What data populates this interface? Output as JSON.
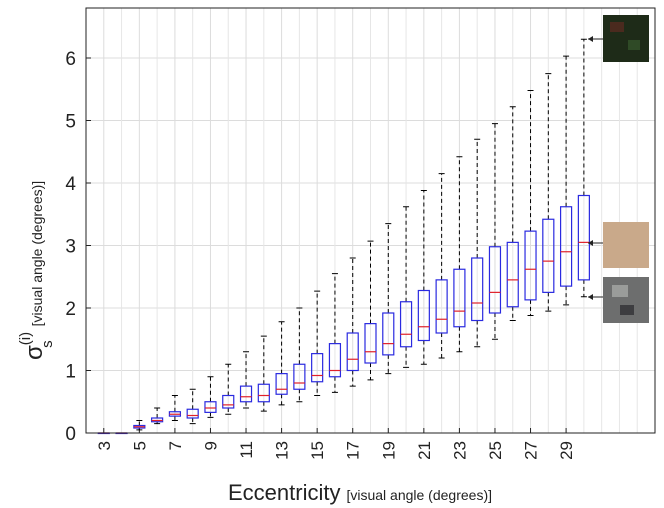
{
  "chart_data": {
    "type": "box",
    "xlabel": {
      "main": "Eccentricity",
      "unit": "[visual angle (degrees)]"
    },
    "ylabel": {
      "symbol": "σ",
      "superscript": "(i)",
      "subscript": "s",
      "unit": "[visual angle (degrees)]"
    },
    "x": [
      3,
      4,
      5,
      6,
      7,
      8,
      9,
      10,
      11,
      12,
      13,
      14,
      15,
      16,
      17,
      18,
      19,
      20,
      21,
      22,
      23,
      24,
      25,
      26,
      27,
      28,
      29,
      30
    ],
    "boxes": [
      {
        "low": 0,
        "q1": 0,
        "median": 0,
        "q3": 0,
        "high": 0
      },
      {
        "low": 0,
        "q1": 0,
        "median": 0,
        "q3": 0,
        "high": 0
      },
      {
        "low": 0.05,
        "q1": 0.08,
        "median": 0.1,
        "q3": 0.12,
        "high": 0.2
      },
      {
        "low": 0.15,
        "q1": 0.18,
        "median": 0.2,
        "q3": 0.24,
        "high": 0.4
      },
      {
        "low": 0.2,
        "q1": 0.27,
        "median": 0.3,
        "q3": 0.34,
        "high": 0.6
      },
      {
        "low": 0.15,
        "q1": 0.24,
        "median": 0.28,
        "q3": 0.38,
        "high": 0.7
      },
      {
        "low": 0.25,
        "q1": 0.33,
        "median": 0.4,
        "q3": 0.5,
        "high": 0.9
      },
      {
        "low": 0.3,
        "q1": 0.4,
        "median": 0.45,
        "q3": 0.6,
        "high": 1.1
      },
      {
        "low": 0.4,
        "q1": 0.5,
        "median": 0.58,
        "q3": 0.75,
        "high": 1.3
      },
      {
        "low": 0.35,
        "q1": 0.5,
        "median": 0.6,
        "q3": 0.78,
        "high": 1.55
      },
      {
        "low": 0.45,
        "q1": 0.62,
        "median": 0.7,
        "q3": 0.95,
        "high": 1.78
      },
      {
        "low": 0.5,
        "q1": 0.7,
        "median": 0.8,
        "q3": 1.1,
        "high": 2.0
      },
      {
        "low": 0.6,
        "q1": 0.82,
        "median": 0.92,
        "q3": 1.27,
        "high": 2.27
      },
      {
        "low": 0.65,
        "q1": 0.9,
        "median": 1.0,
        "q3": 1.43,
        "high": 2.55
      },
      {
        "low": 0.75,
        "q1": 1.0,
        "median": 1.18,
        "q3": 1.6,
        "high": 2.8
      },
      {
        "low": 0.85,
        "q1": 1.12,
        "median": 1.3,
        "q3": 1.75,
        "high": 3.07
      },
      {
        "low": 0.95,
        "q1": 1.25,
        "median": 1.43,
        "q3": 1.92,
        "high": 3.35
      },
      {
        "low": 1.05,
        "q1": 1.38,
        "median": 1.58,
        "q3": 2.1,
        "high": 3.62
      },
      {
        "low": 1.1,
        "q1": 1.48,
        "median": 1.7,
        "q3": 2.28,
        "high": 3.88
      },
      {
        "low": 1.2,
        "q1": 1.6,
        "median": 1.82,
        "q3": 2.45,
        "high": 4.15
      },
      {
        "low": 1.3,
        "q1": 1.7,
        "median": 1.95,
        "q3": 2.62,
        "high": 4.42
      },
      {
        "low": 1.38,
        "q1": 1.8,
        "median": 2.08,
        "q3": 2.8,
        "high": 4.7
      },
      {
        "low": 1.5,
        "q1": 1.92,
        "median": 2.25,
        "q3": 2.98,
        "high": 4.95
      },
      {
        "low": 1.8,
        "q1": 2.02,
        "median": 2.45,
        "q3": 3.05,
        "high": 5.22
      },
      {
        "low": 1.88,
        "q1": 2.13,
        "median": 2.62,
        "q3": 3.23,
        "high": 5.48
      },
      {
        "low": 1.95,
        "q1": 2.25,
        "median": 2.75,
        "q3": 3.42,
        "high": 5.75
      },
      {
        "low": 2.05,
        "q1": 2.35,
        "median": 2.9,
        "q3": 3.62,
        "high": 6.03
      },
      {
        "low": 2.18,
        "q1": 2.45,
        "median": 3.05,
        "q3": 3.8,
        "high": 6.3
      }
    ],
    "box_color": "#2a2ae0",
    "median_color": "#e0202a",
    "whisker_color": "#000000",
    "xlim": [
      2,
      34
    ],
    "xticks": [
      3,
      5,
      7,
      9,
      11,
      13,
      15,
      17,
      19,
      21,
      23,
      25,
      27,
      29
    ],
    "xminorticks": [
      4,
      6,
      8,
      10,
      12,
      14,
      16,
      18,
      20,
      22,
      24,
      26,
      28,
      30,
      31,
      32,
      33
    ],
    "ylim": [
      0,
      6.8
    ],
    "yticks": [
      0,
      1,
      2,
      3,
      4,
      5,
      6
    ],
    "grid": true
  }
}
